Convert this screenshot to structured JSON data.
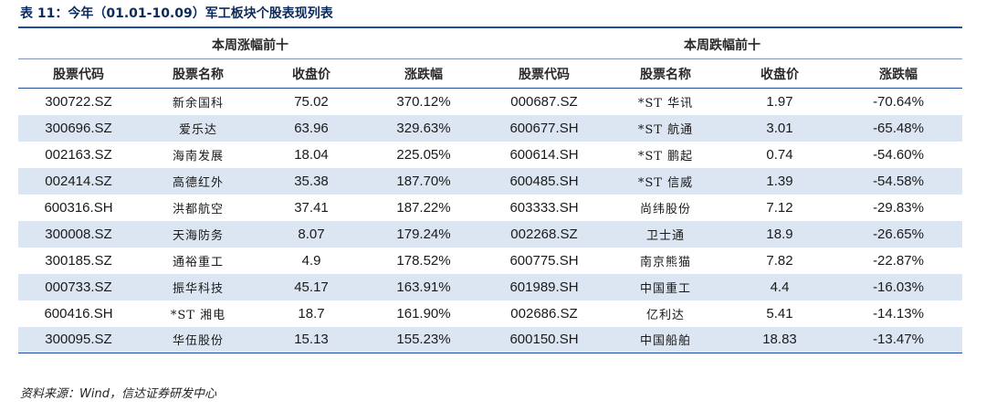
{
  "title": "表 11：今年（01.01-10.09）军工板块个股表现列表",
  "groups": {
    "up": "本周涨幅前十",
    "down": "本周跌幅前十"
  },
  "columns": [
    "股票代码",
    "股票名称",
    "收盘价",
    "涨跌幅",
    "股票代码",
    "股票名称",
    "收盘价",
    "涨跌幅"
  ],
  "rows": [
    {
      "up": {
        "code": "300722.SZ",
        "name": "新余国科",
        "close": "75.02",
        "change": "370.12%"
      },
      "down": {
        "code": "000687.SZ",
        "name": "*ST 华讯",
        "close": "1.97",
        "change": "-70.64%"
      }
    },
    {
      "up": {
        "code": "300696.SZ",
        "name": "爱乐达",
        "close": "63.96",
        "change": "329.63%"
      },
      "down": {
        "code": "600677.SH",
        "name": "*ST 航通",
        "close": "3.01",
        "change": "-65.48%"
      }
    },
    {
      "up": {
        "code": "002163.SZ",
        "name": "海南发展",
        "close": "18.04",
        "change": "225.05%"
      },
      "down": {
        "code": "600614.SH",
        "name": "*ST 鹏起",
        "close": "0.74",
        "change": "-54.60%"
      }
    },
    {
      "up": {
        "code": "002414.SZ",
        "name": "高德红外",
        "close": "35.38",
        "change": "187.70%"
      },
      "down": {
        "code": "600485.SH",
        "name": "*ST 信威",
        "close": "1.39",
        "change": "-54.58%"
      }
    },
    {
      "up": {
        "code": "600316.SH",
        "name": "洪都航空",
        "close": "37.41",
        "change": "187.22%"
      },
      "down": {
        "code": "603333.SH",
        "name": "尚纬股份",
        "close": "7.12",
        "change": "-29.83%"
      }
    },
    {
      "up": {
        "code": "300008.SZ",
        "name": "天海防务",
        "close": "8.07",
        "change": "179.24%"
      },
      "down": {
        "code": "002268.SZ",
        "name": "卫士通",
        "close": "18.9",
        "change": "-26.65%"
      }
    },
    {
      "up": {
        "code": "300185.SZ",
        "name": "通裕重工",
        "close": "4.9",
        "change": "178.52%"
      },
      "down": {
        "code": "600775.SH",
        "name": "南京熊猫",
        "close": "7.82",
        "change": "-22.87%"
      }
    },
    {
      "up": {
        "code": "000733.SZ",
        "name": "振华科技",
        "close": "45.17",
        "change": "163.91%"
      },
      "down": {
        "code": "601989.SH",
        "name": "中国重工",
        "close": "4.4",
        "change": "-16.03%"
      }
    },
    {
      "up": {
        "code": "600416.SH",
        "name": "*ST 湘电",
        "close": "18.7",
        "change": "161.90%"
      },
      "down": {
        "code": "002686.SZ",
        "name": "亿利达",
        "close": "5.41",
        "change": "-14.13%"
      }
    },
    {
      "up": {
        "code": "300095.SZ",
        "name": "华伍股份",
        "close": "15.13",
        "change": "155.23%"
      },
      "down": {
        "code": "600150.SH",
        "name": "中国船舶",
        "close": "18.83",
        "change": "-13.47%"
      }
    }
  ],
  "source": "资料来源：Wind，信达证券研发中心",
  "colors": {
    "accent": "#1f4e9a",
    "stripe": "#dce6f2",
    "title": "#0d2a5c"
  }
}
